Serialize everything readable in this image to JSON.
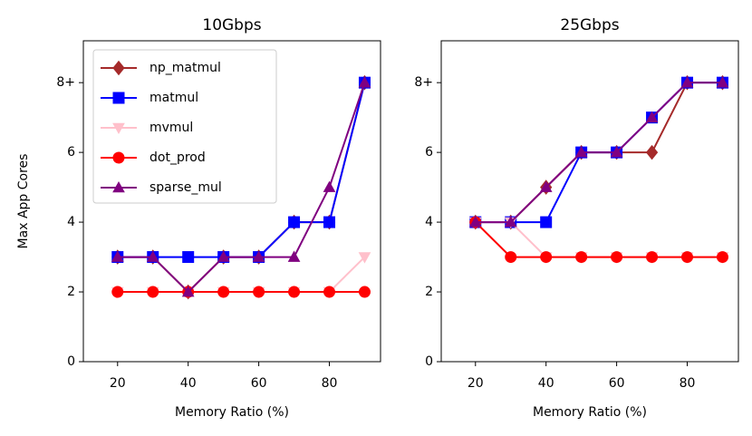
{
  "chart_data": [
    {
      "type": "line",
      "title": "10Gbps",
      "xlabel": "Memory Ratio (%)",
      "ylabel": "Max App Cores",
      "x": [
        20,
        30,
        40,
        50,
        60,
        70,
        80,
        90
      ],
      "series": [
        {
          "name": "np_matmul",
          "color": "#a52a2a",
          "marker": "D",
          "values": [
            3,
            3,
            2,
            3,
            3,
            4,
            4,
            8
          ]
        },
        {
          "name": "matmul",
          "color": "#0000ff",
          "marker": "s",
          "values": [
            3,
            3,
            3,
            3,
            3,
            4,
            4,
            8
          ]
        },
        {
          "name": "mvmul",
          "color": "#ffc0cb",
          "marker": "v",
          "values": [
            2,
            2,
            2,
            2,
            2,
            2,
            2,
            3
          ]
        },
        {
          "name": "dot_prod",
          "color": "#ff0000",
          "marker": "o",
          "values": [
            2,
            2,
            2,
            2,
            2,
            2,
            2,
            2
          ]
        },
        {
          "name": "sparse_mul",
          "color": "#800080",
          "marker": "^",
          "values": [
            3,
            3,
            2,
            3,
            3,
            3,
            5,
            8
          ]
        }
      ],
      "xlim": [
        10.3,
        94.5
      ],
      "ylim": [
        0,
        9.2
      ],
      "xticks": [
        20,
        40,
        60,
        80
      ],
      "yticks": [
        0,
        2,
        4,
        6,
        {
          "value": 8,
          "label": "8+"
        }
      ],
      "legend": "upper left"
    },
    {
      "type": "line",
      "title": "25Gbps",
      "xlabel": "Memory Ratio (%)",
      "x": [
        20,
        30,
        40,
        50,
        60,
        70,
        80,
        90
      ],
      "series": [
        {
          "name": "np_matmul",
          "color": "#a52a2a",
          "marker": "D",
          "values": [
            4,
            4,
            5,
            6,
            6,
            6,
            8,
            8
          ]
        },
        {
          "name": "matmul",
          "color": "#0000ff",
          "marker": "s",
          "values": [
            4,
            4,
            4,
            6,
            6,
            7,
            8,
            8
          ]
        },
        {
          "name": "mvmul",
          "color": "#ffc0cb",
          "marker": "v",
          "values": [
            4,
            4,
            3,
            3,
            3,
            3,
            3,
            3
          ]
        },
        {
          "name": "dot_prod",
          "color": "#ff0000",
          "marker": "o",
          "values": [
            4,
            3,
            3,
            3,
            3,
            3,
            3,
            3
          ]
        },
        {
          "name": "sparse_mul",
          "color": "#800080",
          "marker": "^",
          "values": [
            4,
            4,
            5,
            6,
            6,
            7,
            8,
            8
          ]
        }
      ],
      "xlim": [
        10.3,
        94.5
      ],
      "ylim": [
        0,
        9.2
      ],
      "xticks": [
        20,
        40,
        60,
        80
      ],
      "yticks": [
        0,
        2,
        4,
        6,
        {
          "value": 8,
          "label": "8+"
        }
      ]
    }
  ]
}
